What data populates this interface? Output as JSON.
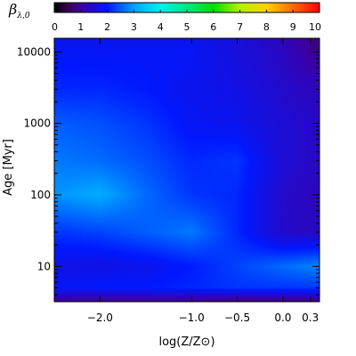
{
  "chart_data": {
    "type": "heatmap",
    "title": "",
    "xlabel": "log(Z/Z⊙)",
    "ylabel": "Age [Myr]",
    "y_scale": "log",
    "xlim": [
      -2.5,
      0.4
    ],
    "ylim": [
      3.2,
      15500
    ],
    "x_ticks": [
      {
        "value": -2.0,
        "label": "−2.0"
      },
      {
        "value": -1.0,
        "label": "−1.0"
      },
      {
        "value": -0.5,
        "label": "−0.5"
      },
      {
        "value": 0.0,
        "label": "0.0"
      },
      {
        "value": 0.3,
        "label": "0.3"
      }
    ],
    "y_ticks": [
      {
        "value": 10,
        "label": "10"
      },
      {
        "value": 100,
        "label": "100"
      },
      {
        "value": 1000,
        "label": "1000"
      },
      {
        "value": 10000,
        "label": "10000"
      }
    ],
    "colorbar": {
      "label_main": "β",
      "label_sub": "λ,0",
      "range": [
        0,
        10
      ],
      "ticks": [
        "0",
        "1",
        "2",
        "3",
        "4",
        "5",
        "6",
        "7",
        "8",
        "9",
        "10"
      ],
      "colormap": "rainbow"
    },
    "grid": false,
    "x": [
      -2.5,
      -2.0,
      -1.5,
      -1.0,
      -0.5,
      0.0,
      0.4
    ],
    "y": [
      3.2,
      5,
      10,
      30,
      100,
      300,
      1000,
      3000,
      10000,
      15500
    ],
    "z": [
      [
        0.9,
        0.8,
        0.8,
        0.8,
        0.7,
        0.7,
        0.7
      ],
      [
        1.9,
        2.0,
        2.0,
        2.1,
        2.2,
        2.2,
        2.2
      ],
      [
        1.7,
        1.7,
        1.8,
        2.0,
        2.3,
        2.6,
        2.8
      ],
      [
        2.2,
        2.3,
        2.5,
        2.7,
        2.1,
        1.4,
        1.3
      ],
      [
        2.9,
        3.1,
        2.6,
        2.2,
        2.1,
        1.4,
        1.2
      ],
      [
        2.7,
        2.6,
        2.4,
        2.1,
        2.2,
        1.5,
        1.3
      ],
      [
        2.5,
        2.4,
        2.2,
        1.9,
        1.8,
        1.5,
        1.3
      ],
      [
        2.1,
        2.1,
        2.0,
        1.8,
        1.7,
        1.4,
        1.2
      ],
      [
        1.9,
        1.9,
        1.9,
        1.9,
        1.6,
        1.3,
        0.8
      ],
      [
        1.8,
        1.8,
        1.8,
        1.8,
        1.6,
        1.2,
        0.7
      ]
    ]
  }
}
